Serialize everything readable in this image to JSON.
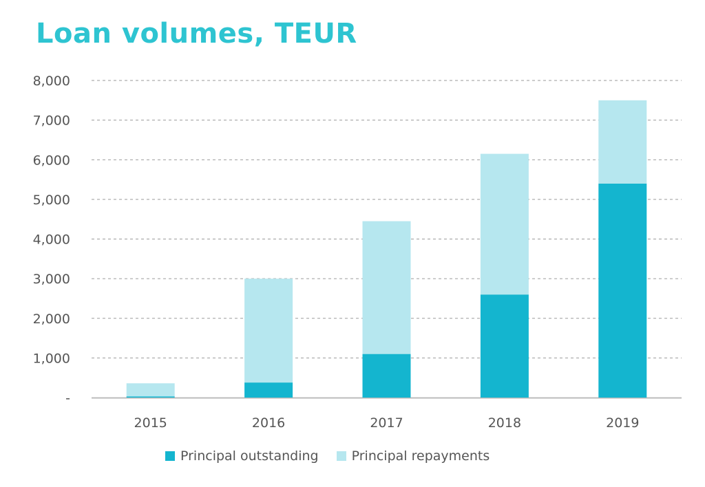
{
  "colors": {
    "title": "#2ec4d1",
    "outstanding": "#14b5cf",
    "repayments": "#b6e7ef",
    "grid": "#9a9a9a",
    "axis": "#bbbbbb",
    "text": "#555555"
  },
  "chart_data": {
    "type": "bar",
    "stacked": true,
    "title": "Loan volumes, TEUR",
    "xlabel": "",
    "ylabel": "",
    "categories": [
      "2015",
      "2016",
      "2017",
      "2018",
      "2019"
    ],
    "series": [
      {
        "name": "Principal outstanding",
        "values": [
          30,
          380,
          1100,
          2600,
          5400
        ]
      },
      {
        "name": "Principal repayments",
        "values": [
          330,
          2620,
          3350,
          3550,
          2100
        ]
      }
    ],
    "ylim": [
      0,
      8000
    ],
    "y_ticks": [
      0,
      1000,
      2000,
      3000,
      4000,
      5000,
      6000,
      7000,
      8000
    ],
    "y_tick_labels": [
      "-",
      "1,000",
      "2,000",
      "3,000",
      "4,000",
      "5,000",
      "6,000",
      "7,000",
      "8,000"
    ],
    "grid": true,
    "legend_position": "bottom"
  }
}
